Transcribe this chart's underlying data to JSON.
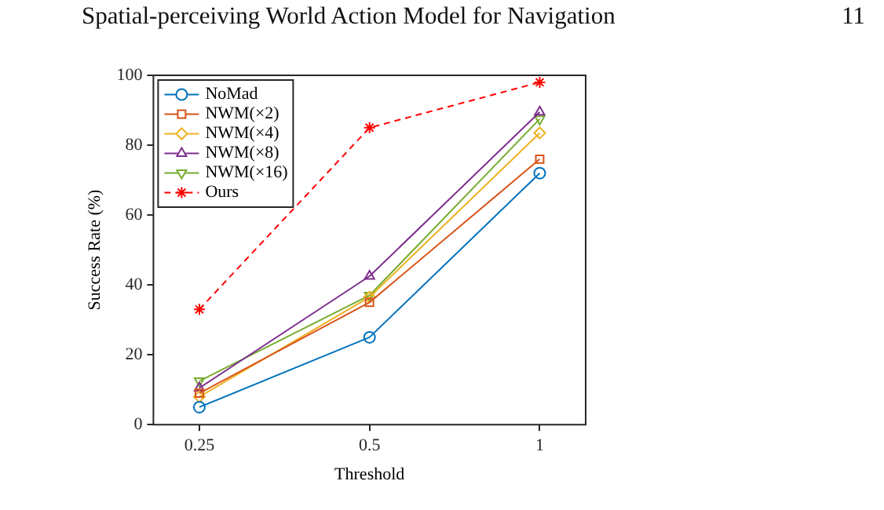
{
  "chart_data": {
    "type": "line",
    "annotations": [
      "Spatial-perceiving World Action Model for Navigation",
      "11"
    ],
    "xlabel": "Threshold",
    "ylabel": "Success Rate (%)",
    "categories": [
      "0.25",
      "0.5",
      "1"
    ],
    "ylim": [
      0,
      100
    ],
    "yticks": [
      0,
      20,
      40,
      60,
      80,
      100
    ],
    "grid": false,
    "legend": "top left",
    "series": [
      {
        "name": "NoMad",
        "color": "#0072bd",
        "marker": "circle",
        "line_style": "solid",
        "values": [
          5,
          25,
          72
        ]
      },
      {
        "name": "NWM(×2)",
        "color": "#d95319",
        "marker": "square",
        "line_style": "solid",
        "values": [
          9,
          35,
          76
        ]
      },
      {
        "name": "NWM(×4)",
        "color": "#edb120",
        "marker": "diamond",
        "line_style": "solid",
        "values": [
          8,
          36.5,
          83.5
        ]
      },
      {
        "name": "NWM(×8)",
        "color": "#7e2f8e",
        "marker": "triangle",
        "line_style": "solid",
        "values": [
          10.5,
          42.5,
          89.5
        ]
      },
      {
        "name": "NWM(×16)",
        "color": "#77ac30",
        "marker": "triangle-down",
        "line_style": "solid",
        "values": [
          12.5,
          37,
          87.5
        ]
      },
      {
        "name": "Ours",
        "color": "#ff0000",
        "marker": "cross",
        "line_style": "dashed",
        "values": [
          33,
          85,
          98
        ]
      }
    ]
  }
}
